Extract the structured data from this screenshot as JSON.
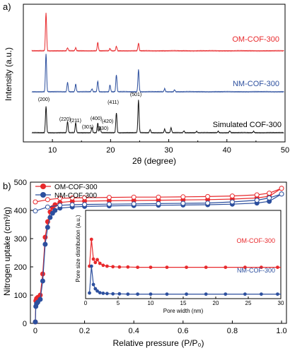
{
  "panel_a": {
    "label": "a)",
    "ylabel": "Intensity (a.u.)",
    "xlabel": "2θ (degree)",
    "x_ticks": [
      "10",
      "20",
      "30",
      "40",
      "50"
    ],
    "series_labels": [
      "OM-COF-300",
      "NM-COF-300",
      "Simulated COF-300"
    ],
    "peak_labels": [
      "(200)",
      "(220)",
      "(211)",
      "(301)",
      "(400)",
      "(330)",
      "(420)",
      "(411)",
      "(501)"
    ]
  },
  "panel_b": {
    "label": "b)",
    "ylabel": "Nitrogen uptake (cm³/g)",
    "xlabel": "Relative pressure (P/P₀)",
    "x_ticks": [
      "0",
      "0.2",
      "0.4",
      "0.6",
      "0.8",
      "1.0"
    ],
    "y_ticks": [
      "0",
      "100",
      "200",
      "300",
      "400",
      "500"
    ],
    "legend": [
      "OM-COF-300",
      "NM-COF-300"
    ],
    "inset": {
      "ylabel": "Pore size distribution (a.u.)",
      "xlabel": "Pore width (nm)",
      "x_ticks": [
        "0",
        "5",
        "10",
        "15",
        "20",
        "25",
        "30"
      ],
      "series_labels": [
        "OM-COF-300",
        "NM-COF-300"
      ]
    }
  },
  "chart_data": [
    {
      "type": "line",
      "title": "",
      "xlabel": "2θ (degree)",
      "ylabel": "Intensity (a.u.)",
      "xlim": [
        5,
        50
      ],
      "grid": false,
      "series": [
        {
          "name": "OM-COF-300",
          "color": "#e8292c",
          "offset": 2,
          "peaks": [
            {
              "x": 8.9,
              "h": 1.0
            },
            {
              "x": 12.6,
              "h": 0.08
            },
            {
              "x": 14.0,
              "h": 0.08
            },
            {
              "x": 17.8,
              "h": 0.22
            },
            {
              "x": 19.9,
              "h": 0.06
            },
            {
              "x": 21.0,
              "h": 0.12
            },
            {
              "x": 24.8,
              "h": 0.2
            }
          ]
        },
        {
          "name": "NM-COF-300",
          "color": "#2c4f9e",
          "offset": 1,
          "peaks": [
            {
              "x": 8.9,
              "h": 1.0
            },
            {
              "x": 12.6,
              "h": 0.25
            },
            {
              "x": 14.0,
              "h": 0.2
            },
            {
              "x": 16.8,
              "h": 0.08
            },
            {
              "x": 17.8,
              "h": 0.28
            },
            {
              "x": 19.9,
              "h": 0.18
            },
            {
              "x": 21.0,
              "h": 0.45
            },
            {
              "x": 24.8,
              "h": 0.58
            },
            {
              "x": 29.3,
              "h": 0.08
            },
            {
              "x": 31.0,
              "h": 0.05
            }
          ]
        },
        {
          "name": "Simulated COF-300",
          "color": "#111111",
          "offset": 0,
          "peaks": [
            {
              "x": 8.9,
              "h": 0.75
            },
            {
              "x": 12.6,
              "h": 0.32
            },
            {
              "x": 14.0,
              "h": 0.28
            },
            {
              "x": 16.8,
              "h": 0.15
            },
            {
              "x": 17.8,
              "h": 0.28
            },
            {
              "x": 18.2,
              "h": 0.16
            },
            {
              "x": 21.0,
              "h": 0.57
            },
            {
              "x": 24.8,
              "h": 0.92
            },
            {
              "x": 26.8,
              "h": 0.09
            },
            {
              "x": 29.3,
              "h": 0.1
            },
            {
              "x": 30.4,
              "h": 0.14
            },
            {
              "x": 32.6,
              "h": 0.05
            },
            {
              "x": 34.8,
              "h": 0.04
            },
            {
              "x": 38.5,
              "h": 0.04
            },
            {
              "x": 40.5,
              "h": 0.05
            },
            {
              "x": 44.6,
              "h": 0.04
            }
          ]
        }
      ]
    },
    {
      "type": "line",
      "title": "",
      "xlabel": "Relative pressure (P/P₀)",
      "ylabel": "Nitrogen uptake (cm³/g)",
      "xlim": [
        -0.02,
        1.02
      ],
      "ylim": [
        0,
        500
      ],
      "legend": "top-left",
      "grid": false,
      "series": [
        {
          "name": "OM-COF-300 adsorption",
          "color": "#e8292c",
          "filled": true,
          "x": [
            0.0,
            0.002,
            0.005,
            0.01,
            0.02,
            0.03,
            0.04,
            0.05,
            0.06,
            0.07,
            0.08,
            0.1,
            0.15,
            0.2,
            0.3,
            0.4,
            0.5,
            0.6,
            0.7,
            0.8,
            0.9,
            0.95,
            1.0
          ],
          "y": [
            5,
            80,
            88,
            92,
            100,
            175,
            305,
            360,
            395,
            410,
            420,
            428,
            432,
            433,
            434,
            435,
            436,
            437,
            438,
            440,
            444,
            450,
            478
          ]
        },
        {
          "name": "OM-COF-300 desorption",
          "color": "#e8292c",
          "filled": false,
          "x": [
            0.0,
            0.05,
            0.1,
            0.15,
            0.2,
            0.3,
            0.4,
            0.5,
            0.6,
            0.7,
            0.8,
            0.9,
            0.95,
            1.0
          ],
          "y": [
            430,
            438,
            443,
            444,
            445,
            446,
            447,
            447,
            448,
            449,
            451,
            455,
            461,
            478
          ]
        },
        {
          "name": "NM-COF-300 adsorption",
          "color": "#2c4f9e",
          "filled": true,
          "x": [
            0.0,
            0.002,
            0.005,
            0.01,
            0.02,
            0.03,
            0.04,
            0.05,
            0.06,
            0.07,
            0.08,
            0.1,
            0.15,
            0.2,
            0.3,
            0.4,
            0.5,
            0.6,
            0.7,
            0.8,
            0.9,
            0.95,
            1.0
          ],
          "y": [
            5,
            60,
            70,
            75,
            85,
            150,
            280,
            340,
            375,
            390,
            400,
            408,
            412,
            414,
            416,
            417,
            418,
            419,
            420,
            422,
            426,
            432,
            458
          ]
        },
        {
          "name": "NM-COF-300 desorption",
          "color": "#2c4f9e",
          "filled": false,
          "x": [
            0.0,
            0.05,
            0.1,
            0.15,
            0.2,
            0.3,
            0.4,
            0.5,
            0.6,
            0.7,
            0.8,
            0.9,
            0.95,
            1.0
          ],
          "y": [
            398,
            412,
            418,
            420,
            421,
            422,
            423,
            424,
            425,
            426,
            430,
            436,
            444,
            458
          ]
        }
      ]
    },
    {
      "type": "line",
      "title": "",
      "xlabel": "Pore width (nm)",
      "ylabel": "Pore size distribution (a.u.)",
      "xlim": [
        0,
        30
      ],
      "series": [
        {
          "name": "OM-COF-300",
          "color": "#e8292c",
          "offset": 1,
          "x": [
            0.6,
            0.9,
            1.2,
            1.5,
            1.8,
            2.2,
            2.7,
            3.3,
            4.2,
            5.2,
            6.5,
            8,
            10,
            12.5,
            15.5,
            18.5,
            21.5,
            24.5,
            27,
            29.5
          ],
          "y": [
            0.05,
            1.0,
            0.3,
            0.18,
            0.28,
            0.15,
            0.08,
            0.05,
            0.03,
            0.02,
            0.02,
            0.01,
            0.01,
            0.01,
            0.01,
            0.01,
            0.01,
            0.01,
            0.01,
            0.01
          ]
        },
        {
          "name": "NM-COF-300",
          "color": "#2c4f9e",
          "offset": 0,
          "x": [
            0.6,
            0.9,
            1.2,
            1.5,
            1.8,
            2.2,
            2.7,
            3.3,
            4.2,
            5.2,
            6.5,
            8,
            10,
            12.5,
            15.5,
            18.5,
            21.5,
            24.5,
            27,
            29.5
          ],
          "y": [
            0.05,
            1.0,
            0.35,
            0.2,
            0.12,
            0.06,
            0.04,
            0.03,
            0.02,
            0.02,
            0.01,
            0.01,
            0.01,
            0.01,
            0.01,
            0.01,
            0.01,
            0.01,
            0.01,
            0.01
          ]
        }
      ]
    }
  ]
}
